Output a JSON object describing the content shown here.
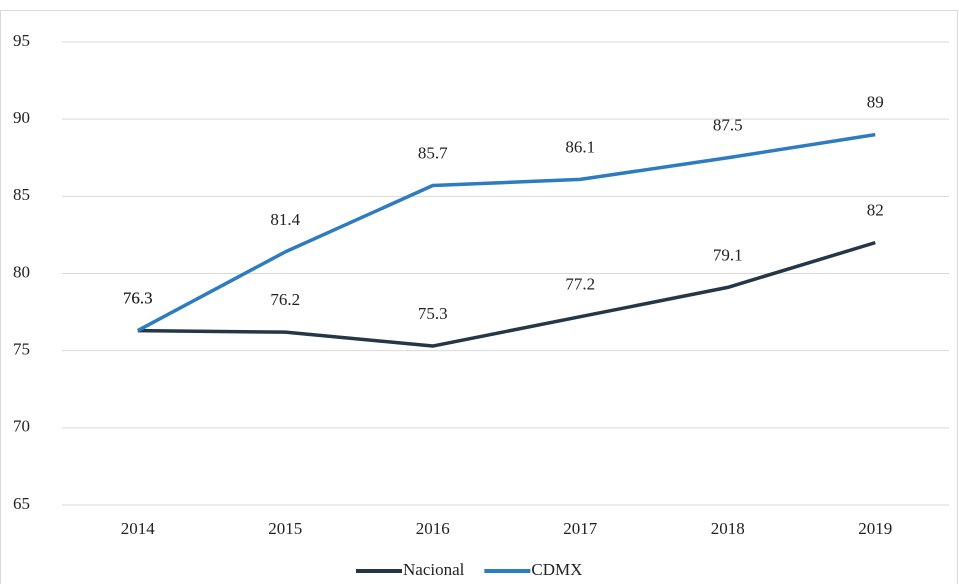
{
  "chart_data": {
    "type": "line",
    "categories": [
      "2014",
      "2015",
      "2016",
      "2017",
      "2018",
      "2019"
    ],
    "series": [
      {
        "name": "Nacional",
        "color": "#243746",
        "values": [
          76.3,
          76.2,
          75.3,
          77.2,
          79.1,
          82
        ]
      },
      {
        "name": "CDMX",
        "color": "#2e7cc0",
        "values": [
          76.3,
          81.4,
          85.7,
          86.1,
          87.5,
          89
        ]
      }
    ],
    "ylim": [
      65,
      95
    ],
    "yticks": [
      65,
      70,
      75,
      80,
      85,
      90,
      95
    ],
    "grid": true,
    "legend": "bottom"
  }
}
